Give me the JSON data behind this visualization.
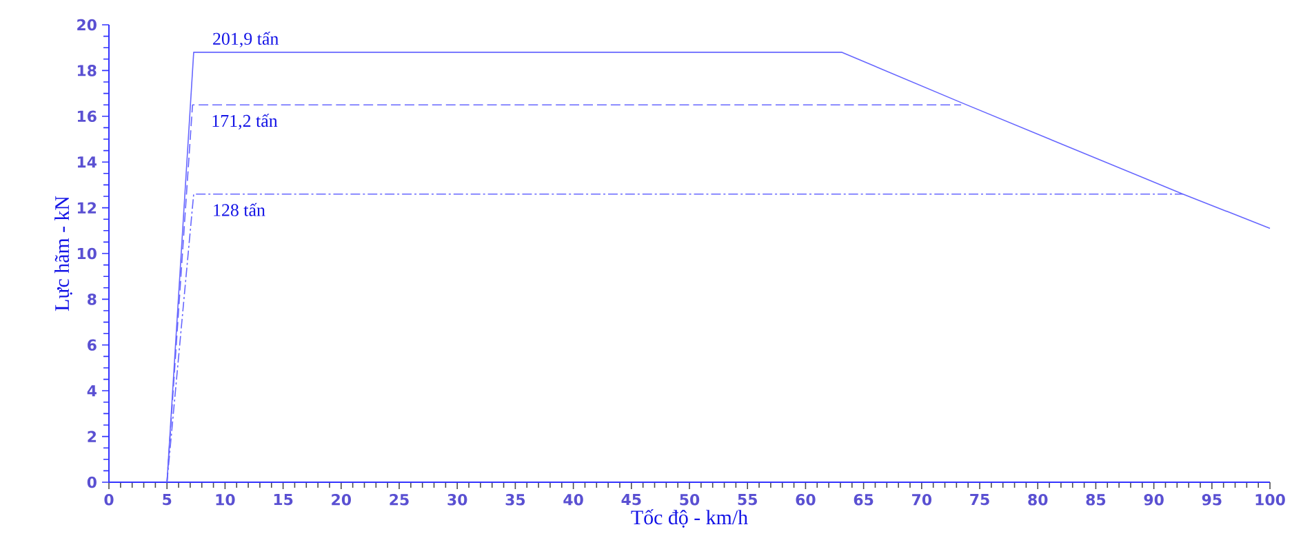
{
  "chart_data": {
    "type": "line",
    "xlabel": "Tốc độ - km/h",
    "ylabel": "Lực hãm - kN",
    "xlim": [
      0,
      100
    ],
    "xticks": [
      0,
      5,
      10,
      15,
      20,
      25,
      30,
      35,
      40,
      45,
      50,
      55,
      60,
      65,
      70,
      75,
      80,
      85,
      90,
      95,
      100
    ],
    "ylim": [
      0,
      20
    ],
    "yticks": [
      0,
      2,
      4,
      6,
      8,
      10,
      12,
      14,
      16,
      18,
      20
    ],
    "grid": false,
    "marker": "none",
    "series": [
      {
        "name": "201,9 tấn",
        "color": "#6666ff",
        "line_style": "solid",
        "x": [
          5,
          7.3,
          63.1,
          73.4,
          92.5,
          100
        ],
        "values": [
          0,
          18.8,
          18.8,
          16.6,
          12.6,
          11.1
        ]
      },
      {
        "name": "171,2 tấn",
        "color": "#6666ff",
        "line_style": "dashed",
        "x": [
          5,
          7.2,
          73.4
        ],
        "values": [
          0,
          16.5,
          16.5
        ]
      },
      {
        "name": "128 tấn",
        "color": "#6666ff",
        "line_style": "dashdot",
        "x": [
          5,
          7.3,
          92.5
        ],
        "values": [
          0,
          12.6,
          12.6
        ]
      }
    ]
  }
}
